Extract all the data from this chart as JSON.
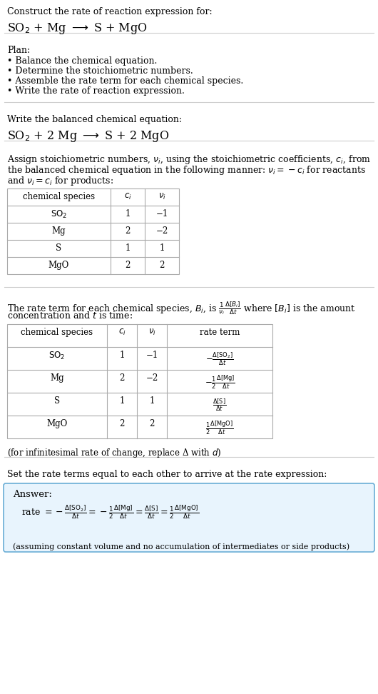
{
  "bg_color": "#ffffff",
  "text_color": "#000000",
  "title_text": "Construct the rate of reaction expression for:",
  "plan_title": "Plan:",
  "plan_items": [
    "• Balance the chemical equation.",
    "• Determine the stoichiometric numbers.",
    "• Assemble the rate term for each chemical species.",
    "• Write the rate of reaction expression."
  ],
  "balanced_label": "Write the balanced chemical equation:",
  "assign_text_lines": [
    "Assign stoichiometric numbers, $\\nu_i$, using the stoichiometric coefficients, $c_i$, from",
    "the balanced chemical equation in the following manner: $\\nu_i = -c_i$ for reactants",
    "and $\\nu_i = c_i$ for products:"
  ],
  "table1_headers": [
    "chemical species",
    "$c_i$",
    "$\\nu_i$"
  ],
  "table1_rows": [
    [
      "$\\mathrm{SO_2}$",
      "1",
      "−1"
    ],
    [
      "Mg",
      "2",
      "−2"
    ],
    [
      "S",
      "1",
      "1"
    ],
    [
      "MgO",
      "2",
      "2"
    ]
  ],
  "rate_text_lines": [
    "The rate term for each chemical species, $B_i$, is $\\frac{1}{\\nu_i}\\frac{\\Delta[B_i]}{\\Delta t}$ where $[B_i]$ is the amount",
    "concentration and $t$ is time:"
  ],
  "table2_headers": [
    "chemical species",
    "$c_i$",
    "$\\nu_i$",
    "rate term"
  ],
  "table2_rows": [
    [
      "$\\mathrm{SO_2}$",
      "1",
      "−1"
    ],
    [
      "Mg",
      "2",
      "−2"
    ],
    [
      "S",
      "1",
      "1"
    ],
    [
      "MgO",
      "2",
      "2"
    ]
  ],
  "rate_terms": [
    "$-\\frac{\\Delta[\\mathrm{SO_2}]}{\\Delta t}$",
    "$-\\frac{1}{2}\\frac{\\Delta[\\mathrm{Mg}]}{\\Delta t}$",
    "$\\frac{\\Delta[\\mathrm{S}]}{\\Delta t}$",
    "$\\frac{1}{2}\\frac{\\Delta[\\mathrm{MgO}]}{\\Delta t}$"
  ],
  "infinitesimal_note": "(for infinitesimal rate of change, replace Δ with $d$)",
  "set_equal_text": "Set the rate terms equal to each other to arrive at the rate expression:",
  "answer_label": "Answer:",
  "answer_box_color": "#e8f4fd",
  "answer_box_border": "#6baed6",
  "answer_note": "(assuming constant volume and no accumulation of intermediates or side products)"
}
